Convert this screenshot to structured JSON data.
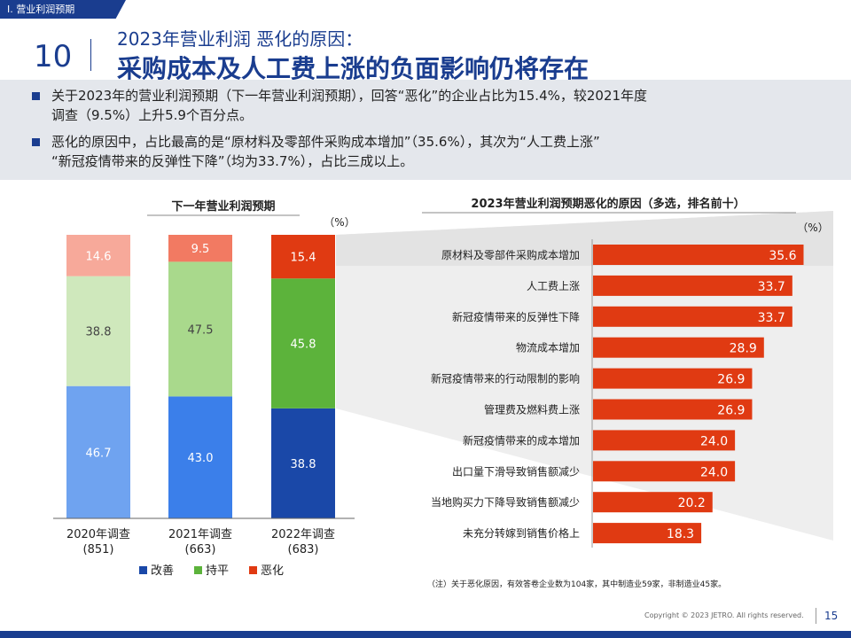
{
  "header": {
    "section_tag": "Ⅰ. 营业利润预期",
    "page_number": "10",
    "title_line1": "2023年营业利润  恶化的原因：",
    "title_line2": "采购成本及人工费上涨的负面影响仍将存在"
  },
  "summary": {
    "bullet1_line1": "关于2023年的营业利润预期（下一年营业利润预期），回答“恶化”的企业占比为15.4%，较2021年度",
    "bullet1_line2": "调查（9.5%）上升5.9个百分点。",
    "bullet2_line1": "恶化的原因中，占比最高的是“原材料及零部件采购成本增加”（35.6%），其次为“人工费上涨”",
    "bullet2_line2": "“新冠疫情带来的反弹性下降”（均为33.7%），占比三成以上。"
  },
  "colors": {
    "brand": "#1a3d8f",
    "improve_2020": "#6fa3f0",
    "improve_2021": "#3b7fea",
    "improve_2022": "#1a48a8",
    "flat_2020": "#cfe8bc",
    "flat_2021": "#a9d98c",
    "flat_2022": "#5cb33b",
    "worse_2020": "#f7a99a",
    "worse_2021": "#f27a62",
    "worse_2022": "#e03a12",
    "reason_bar": "#e03a12"
  },
  "chart_data": [
    {
      "type": "bar",
      "stacked": true,
      "title": "下一年营业利润预期",
      "unit": "（%）",
      "categories": [
        {
          "line1": "2020年调查",
          "line2": "(851)"
        },
        {
          "line1": "2021年调查",
          "line2": "(663)"
        },
        {
          "line1": "2022年调查",
          "line2": "(683)"
        }
      ],
      "series": [
        {
          "name": "改善",
          "values": [
            46.7,
            43.0,
            38.8
          ],
          "labels": [
            "46.7",
            "43.0",
            "38.8"
          ]
        },
        {
          "name": "持平",
          "values": [
            38.8,
            47.5,
            45.8
          ],
          "labels": [
            "38.8",
            "47.5",
            "45.8"
          ]
        },
        {
          "name": "恶化",
          "values": [
            14.6,
            9.5,
            15.4
          ],
          "labels": [
            "14.6",
            "9.5",
            "15.4"
          ]
        }
      ],
      "ylim": [
        0,
        100
      ],
      "legend_position": "bottom"
    },
    {
      "type": "bar",
      "orientation": "horizontal",
      "title": "2023年营业利润预期恶化的原因（多选，排名前十）",
      "unit": "（%）",
      "categories": [
        "原材料及零部件采购成本增加",
        "人工费上涨",
        "新冠疫情带来的反弹性下降",
        "物流成本增加",
        "新冠疫情带来的行动限制的影响",
        "管理费及燃料费上涨",
        "新冠疫情带来的成本增加",
        "出口量下滑导致销售额减少",
        "当地购买力下降导致销售额减少",
        "未充分转嫁到销售价格上"
      ],
      "values": [
        35.6,
        33.7,
        33.7,
        28.9,
        26.9,
        26.9,
        24.0,
        24.0,
        20.2,
        18.3
      ],
      "labels": [
        "35.6",
        "33.7",
        "33.7",
        "28.9",
        "26.9",
        "26.9",
        "24.0",
        "24.0",
        "20.2",
        "18.3"
      ],
      "xlim": [
        0,
        40
      ],
      "note": "（注）关于恶化原因，有效答卷企业数为104家，其中制造业59家，非制造业45家。"
    }
  ],
  "footer": {
    "copyright": "Copyright © 2023 JETRO. All rights reserved.",
    "page": "15"
  }
}
